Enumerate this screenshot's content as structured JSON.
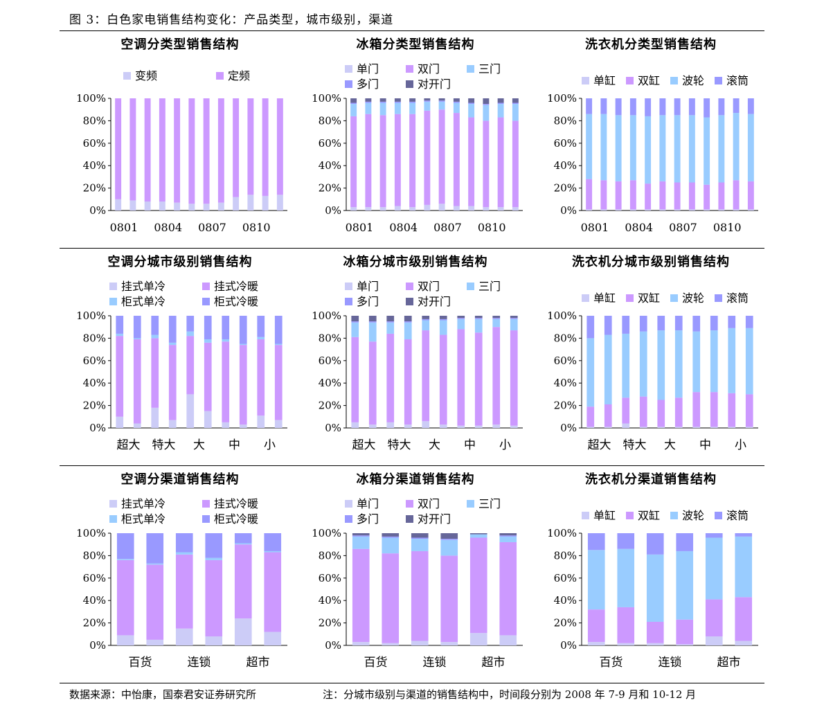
{
  "figure": {
    "title": "图 3：白色家电销售结构变化：产品类型，城市级别，渠道",
    "source": "数据来源：中怡康，国泰君安证券研究所",
    "note": "注：分城市级别与渠道的销售结构中，时间段分别为 2008 年 7-9 月和 10-12 月"
  },
  "colors": {
    "c1": "#ccccf7",
    "c2": "#cc99ff",
    "c3": "#99ccff",
    "c4": "#9999ff",
    "c5": "#666699"
  },
  "chart_data": [
    {
      "type": "bar",
      "stacked": true,
      "title": "空调分类型销售结构",
      "y_ticks": [
        "0%",
        "20%",
        "40%",
        "60%",
        "80%",
        "100%"
      ],
      "ylim": [
        0,
        100
      ],
      "x_tick_labels": [
        "0801",
        "0804",
        "0807",
        "0810"
      ],
      "legend": [
        "变频",
        "定频"
      ],
      "bars": [
        [
          10,
          90
        ],
        [
          9,
          91
        ],
        [
          8,
          92
        ],
        [
          8,
          92
        ],
        [
          7,
          93
        ],
        [
          6,
          94
        ],
        [
          6,
          94
        ],
        [
          7,
          93
        ],
        [
          12,
          88
        ],
        [
          14,
          86
        ],
        [
          13,
          87
        ],
        [
          14,
          86
        ]
      ]
    },
    {
      "type": "bar",
      "stacked": true,
      "title": "冰箱分类型销售结构",
      "y_ticks": [
        "0%",
        "20%",
        "40%",
        "60%",
        "80%",
        "100%"
      ],
      "ylim": [
        0,
        100
      ],
      "x_tick_labels": [
        "0801",
        "0804",
        "0807",
        "0810"
      ],
      "legend": [
        "单门",
        "双门",
        "三门",
        "多门",
        "对开门"
      ],
      "bars": [
        [
          3,
          81,
          11,
          1,
          4
        ],
        [
          3,
          83,
          10,
          1,
          3
        ],
        [
          3,
          82,
          11,
          1,
          3
        ],
        [
          4,
          82,
          10,
          1,
          3
        ],
        [
          3,
          83,
          10,
          1,
          3
        ],
        [
          5,
          84,
          8,
          1,
          2
        ],
        [
          6,
          84,
          7,
          1,
          2
        ],
        [
          4,
          83,
          9,
          1,
          3
        ],
        [
          4,
          79,
          12,
          1,
          4
        ],
        [
          3,
          77,
          14,
          1,
          5
        ],
        [
          3,
          80,
          12,
          1,
          4
        ],
        [
          3,
          77,
          15,
          1,
          4
        ]
      ]
    },
    {
      "type": "bar",
      "stacked": true,
      "title": "洗衣机分类型销售结构",
      "y_ticks": [
        "0%",
        "20%",
        "40%",
        "60%",
        "80%",
        "100%"
      ],
      "ylim": [
        0,
        100
      ],
      "x_tick_labels": [
        "0801",
        "0804",
        "0807",
        "0810"
      ],
      "legend": [
        "单缸",
        "双缸",
        "波轮",
        "滚筒"
      ],
      "bars": [
        [
          1,
          27,
          58,
          14
        ],
        [
          1,
          26,
          59,
          14
        ],
        [
          1,
          25,
          59,
          15
        ],
        [
          1,
          26,
          58,
          15
        ],
        [
          1,
          23,
          60,
          16
        ],
        [
          1,
          25,
          59,
          15
        ],
        [
          1,
          24,
          60,
          15
        ],
        [
          1,
          24,
          60,
          15
        ],
        [
          1,
          22,
          60,
          17
        ],
        [
          1,
          24,
          60,
          15
        ],
        [
          1,
          26,
          60,
          13
        ],
        [
          1,
          25,
          60,
          14
        ]
      ]
    },
    {
      "type": "bar",
      "stacked": true,
      "title": "空调分城市级别销售结构",
      "y_ticks": [
        "0%",
        "20%",
        "40%",
        "60%",
        "80%",
        "100%"
      ],
      "ylim": [
        0,
        100
      ],
      "x_tick_labels": [
        "超大",
        "特大",
        "大",
        "中",
        "小"
      ],
      "legend": [
        "挂式单冷",
        "挂式冷暖",
        "柜式单冷",
        "柜式冷暖"
      ],
      "bars": [
        [
          10,
          72,
          2,
          16
        ],
        [
          4,
          75,
          1,
          20
        ],
        [
          18,
          62,
          3,
          17
        ],
        [
          7,
          67,
          2,
          24
        ],
        [
          30,
          52,
          4,
          14
        ],
        [
          15,
          61,
          3,
          21
        ],
        [
          5,
          72,
          2,
          21
        ],
        [
          3,
          71,
          1,
          25
        ],
        [
          11,
          68,
          2,
          19
        ],
        [
          7,
          67,
          1,
          25
        ]
      ]
    },
    {
      "type": "bar",
      "stacked": true,
      "title": "冰箱分城市级别销售结构",
      "y_ticks": [
        "0%",
        "20%",
        "40%",
        "60%",
        "80%",
        "100%"
      ],
      "ylim": [
        0,
        100
      ],
      "x_tick_labels": [
        "超大",
        "特大",
        "大",
        "中",
        "小"
      ],
      "legend": [
        "单门",
        "双门",
        "三门",
        "多门",
        "对开门"
      ],
      "bars": [
        [
          5,
          76,
          13,
          1,
          5
        ],
        [
          3,
          74,
          17,
          1,
          5
        ],
        [
          5,
          79,
          10,
          1,
          5
        ],
        [
          3,
          76,
          15,
          1,
          5
        ],
        [
          6,
          81,
          9,
          1,
          3
        ],
        [
          3,
          80,
          13,
          1,
          3
        ],
        [
          2,
          86,
          9,
          1,
          2
        ],
        [
          2,
          83,
          12,
          1,
          2
        ],
        [
          3,
          87,
          7,
          1,
          2
        ],
        [
          2,
          85,
          10,
          1,
          2
        ]
      ]
    },
    {
      "type": "bar",
      "stacked": true,
      "title": "洗衣机分城市级别销售结构",
      "y_ticks": [
        "0%",
        "20%",
        "40%",
        "60%",
        "80%",
        "100%"
      ],
      "ylim": [
        0,
        100
      ],
      "x_tick_labels": [
        "超大",
        "特大",
        "大",
        "中",
        "小"
      ],
      "legend": [
        "单缸",
        "双缸",
        "波轮",
        "滚筒"
      ],
      "bars": [
        [
          1,
          18,
          61,
          20
        ],
        [
          1,
          20,
          62,
          17
        ],
        [
          4,
          23,
          57,
          16
        ],
        [
          1,
          27,
          58,
          14
        ],
        [
          1,
          24,
          62,
          13
        ],
        [
          1,
          26,
          60,
          13
        ],
        [
          1,
          31,
          54,
          14
        ],
        [
          1,
          31,
          55,
          13
        ],
        [
          1,
          30,
          58,
          11
        ],
        [
          1,
          29,
          59,
          11
        ]
      ]
    },
    {
      "type": "bar",
      "stacked": true,
      "title": "空调分渠道销售结构",
      "y_ticks": [
        "0%",
        "20%",
        "40%",
        "60%",
        "80%",
        "100%"
      ],
      "ylim": [
        0,
        100
      ],
      "x_tick_labels": [
        "百货",
        "连锁",
        "超市"
      ],
      "legend": [
        "挂式单冷",
        "挂式冷暖",
        "柜式单冷",
        "柜式冷暖"
      ],
      "bars": [
        [
          9,
          67,
          1,
          23
        ],
        [
          5,
          67,
          1,
          27
        ],
        [
          15,
          66,
          2,
          17
        ],
        [
          8,
          68,
          2,
          22
        ],
        [
          24,
          66,
          1,
          9
        ],
        [
          12,
          71,
          1,
          16
        ]
      ]
    },
    {
      "type": "bar",
      "stacked": true,
      "title": "冰箱分渠道销售结构",
      "y_ticks": [
        "0%",
        "20%",
        "40%",
        "60%",
        "80%",
        "100%"
      ],
      "ylim": [
        0,
        100
      ],
      "x_tick_labels": [
        "百货",
        "连锁",
        "超市"
      ],
      "legend": [
        "单门",
        "双门",
        "三门",
        "多门",
        "对开门"
      ],
      "bars": [
        [
          3,
          83,
          11,
          1,
          2
        ],
        [
          2,
          80,
          14,
          1,
          3
        ],
        [
          4,
          80,
          11,
          1,
          4
        ],
        [
          3,
          77,
          14,
          1,
          5
        ],
        [
          11,
          85,
          3,
          0,
          1
        ],
        [
          9,
          83,
          5,
          1,
          2
        ]
      ]
    },
    {
      "type": "bar",
      "stacked": true,
      "title": "洗衣机分渠道销售结构",
      "y_ticks": [
        "0%",
        "20%",
        "40%",
        "60%",
        "80%",
        "100%"
      ],
      "ylim": [
        0,
        100
      ],
      "x_tick_labels": [
        "百货",
        "连锁",
        "超市"
      ],
      "legend": [
        "单缸",
        "双缸",
        "波轮",
        "滚筒"
      ],
      "bars": [
        [
          3,
          29,
          53,
          15
        ],
        [
          2,
          32,
          52,
          14
        ],
        [
          2,
          19,
          60,
          19
        ],
        [
          1,
          22,
          61,
          16
        ],
        [
          8,
          33,
          55,
          4
        ],
        [
          4,
          39,
          54,
          3
        ]
      ]
    }
  ]
}
